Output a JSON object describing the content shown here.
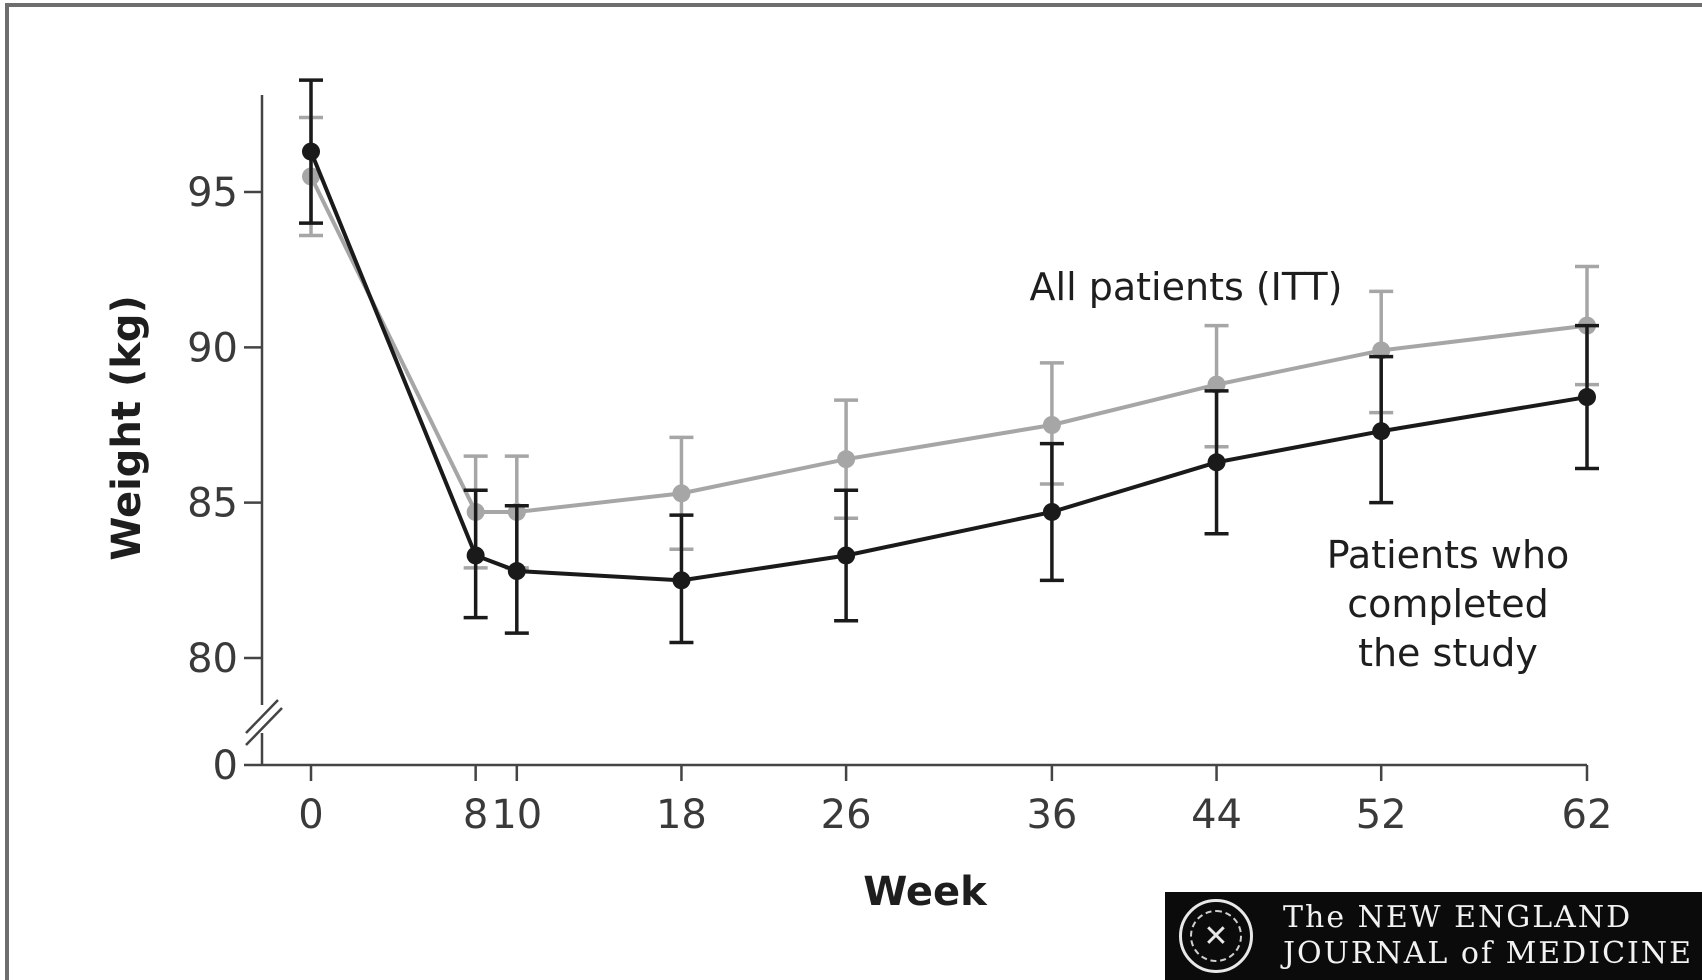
{
  "chart_data": {
    "type": "line",
    "xlabel": "Week",
    "ylabel": "Weight (kg)",
    "x": [
      0,
      8,
      10,
      18,
      26,
      36,
      44,
      52,
      62
    ],
    "x_tick_labels": [
      "0",
      "8",
      "10",
      "18",
      "26",
      "36",
      "44",
      "52",
      "62"
    ],
    "y_ticks": [
      0,
      80,
      85,
      90,
      95
    ],
    "y_tick_labels": [
      "0",
      "80",
      "85",
      "90",
      "95"
    ],
    "y_axis_break": "between 0 and 80",
    "xlim": [
      0,
      62
    ],
    "ylim": [
      0,
      98
    ],
    "grid": false,
    "series": [
      {
        "name": "All patients (ITT)",
        "color": "#a6a6a6",
        "values": [
          95.5,
          84.7,
          84.7,
          85.3,
          86.4,
          87.5,
          88.8,
          89.9,
          90.7
        ],
        "error_upper": [
          97.4,
          86.5,
          86.5,
          87.1,
          88.3,
          89.5,
          90.7,
          91.8,
          92.6
        ],
        "error_lower": [
          93.6,
          82.9,
          82.9,
          83.5,
          84.5,
          85.6,
          86.8,
          87.9,
          88.8
        ]
      },
      {
        "name": "Patients who completed the study",
        "color": "#1a1a1a",
        "values": [
          96.3,
          83.3,
          82.8,
          82.5,
          83.3,
          84.7,
          86.3,
          87.3,
          88.4
        ],
        "error_upper": [
          98.6,
          85.4,
          84.9,
          84.6,
          85.4,
          86.9,
          88.6,
          89.7,
          90.7
        ],
        "error_lower": [
          94.0,
          81.3,
          80.8,
          80.5,
          81.2,
          82.5,
          84.0,
          85.0,
          86.1
        ]
      }
    ],
    "annotations": [
      {
        "series": 0,
        "lines": [
          "All patients (ITT)"
        ]
      },
      {
        "series": 1,
        "lines": [
          "Patients who",
          "completed",
          "the study"
        ]
      }
    ]
  },
  "logo": {
    "line1": "The NEW ENGLAND",
    "line2": "JOURNAL of MEDICINE"
  },
  "colors": {
    "frame_border": "#6e6e6e",
    "axis": "#444444"
  }
}
